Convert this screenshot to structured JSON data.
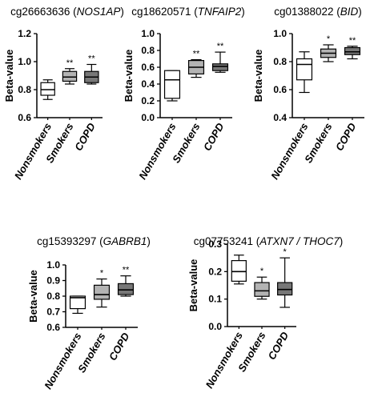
{
  "colors": {
    "nonsmokers": "#ffffff",
    "smokers": "#b3b3b3",
    "copd": "#777777",
    "stroke": "#000000"
  },
  "chart_data": [
    {
      "type": "box",
      "title_prefix": "cg26663636 (",
      "gene": "NOS1AP",
      "title_suffix": ")",
      "ylabel": "Beta-value",
      "ylim": [
        0.6,
        1.2
      ],
      "yticks": [
        "0.6",
        "0.8",
        "1.0",
        "1.2"
      ],
      "ytick_values": [
        0.6,
        0.8,
        1.0,
        1.2
      ],
      "categories": [
        "Nonsmokers",
        "Smokers",
        "COPD"
      ],
      "boxes": [
        {
          "min": 0.73,
          "q1": 0.76,
          "median": 0.8,
          "q3": 0.85,
          "max": 0.87,
          "sig": ""
        },
        {
          "min": 0.84,
          "q1": 0.86,
          "median": 0.89,
          "q3": 0.93,
          "max": 0.95,
          "sig": "**"
        },
        {
          "min": 0.84,
          "q1": 0.85,
          "median": 0.89,
          "q3": 0.93,
          "max": 0.98,
          "sig": "**"
        }
      ]
    },
    {
      "type": "box",
      "title_prefix": "cg18620571 (",
      "gene": "TNFAIP2",
      "title_suffix": ")",
      "ylabel": "Beta-value",
      "ylim": [
        0.0,
        1.0
      ],
      "yticks": [
        "0.0",
        "0.2",
        "0.4",
        "0.6",
        "0.8",
        "1.0"
      ],
      "ytick_values": [
        0.0,
        0.2,
        0.4,
        0.6,
        0.8,
        1.0
      ],
      "categories": [
        "Nonsmokers",
        "Smokers",
        "COPD"
      ],
      "boxes": [
        {
          "min": 0.2,
          "q1": 0.23,
          "median": 0.45,
          "q3": 0.56,
          "max": 0.56,
          "sig": ""
        },
        {
          "min": 0.48,
          "q1": 0.52,
          "median": 0.6,
          "q3": 0.68,
          "max": 0.69,
          "sig": "**"
        },
        {
          "min": 0.54,
          "q1": 0.56,
          "median": 0.61,
          "q3": 0.64,
          "max": 0.78,
          "sig": "**"
        }
      ]
    },
    {
      "type": "box",
      "title_prefix": "cg01388022 (",
      "gene": "BID",
      "title_suffix": ")",
      "ylabel": "Beta-value",
      "ylim": [
        0.4,
        1.0
      ],
      "yticks": [
        "0.4",
        "0.6",
        "0.8",
        "1.0"
      ],
      "ytick_values": [
        0.4,
        0.6,
        0.8,
        1.0
      ],
      "categories": [
        "Nonsmokers",
        "Smokers",
        "COPD"
      ],
      "boxes": [
        {
          "min": 0.58,
          "q1": 0.67,
          "median": 0.78,
          "q3": 0.82,
          "max": 0.87,
          "sig": ""
        },
        {
          "min": 0.8,
          "q1": 0.83,
          "median": 0.86,
          "q3": 0.89,
          "max": 0.92,
          "sig": "*"
        },
        {
          "min": 0.82,
          "q1": 0.85,
          "median": 0.87,
          "q3": 0.9,
          "max": 0.91,
          "sig": "**"
        }
      ]
    },
    {
      "type": "box",
      "title_prefix": "cg15393297 (",
      "gene": "GABRB1",
      "title_suffix": ")",
      "ylabel": "Beta-value",
      "ylim": [
        0.6,
        1.0
      ],
      "yticks": [
        "0.6",
        "0.7",
        "0.8",
        "0.9",
        "1.0"
      ],
      "ytick_values": [
        0.6,
        0.7,
        0.8,
        0.9,
        1.0
      ],
      "categories": [
        "Nonsmokers",
        "Smokers",
        "COPD"
      ],
      "boxes": [
        {
          "min": 0.69,
          "q1": 0.72,
          "median": 0.79,
          "q3": 0.8,
          "max": 0.8,
          "sig": ""
        },
        {
          "min": 0.73,
          "q1": 0.78,
          "median": 0.81,
          "q3": 0.87,
          "max": 0.91,
          "sig": "*"
        },
        {
          "min": 0.8,
          "q1": 0.81,
          "median": 0.84,
          "q3": 0.88,
          "max": 0.93,
          "sig": "**"
        }
      ]
    },
    {
      "type": "box",
      "title_prefix": "cg07753241 (",
      "gene": "ATXN7 / THOC7",
      "title_suffix": ")",
      "ylabel": "Beta-value",
      "ylim": [
        0.0,
        0.3
      ],
      "yticks": [
        "0.0",
        "0.1",
        "0.2",
        "0.3"
      ],
      "ytick_values": [
        0.0,
        0.1,
        0.2,
        0.3
      ],
      "categories": [
        "Nonsmokers",
        "Smokers",
        "COPD"
      ],
      "boxes": [
        {
          "min": 0.155,
          "q1": 0.165,
          "median": 0.2,
          "q3": 0.24,
          "max": 0.26,
          "sig": ""
        },
        {
          "min": 0.1,
          "q1": 0.11,
          "median": 0.13,
          "q3": 0.16,
          "max": 0.18,
          "sig": "*"
        },
        {
          "min": 0.07,
          "q1": 0.115,
          "median": 0.135,
          "q3": 0.16,
          "max": 0.25,
          "sig": "*"
        }
      ]
    }
  ]
}
